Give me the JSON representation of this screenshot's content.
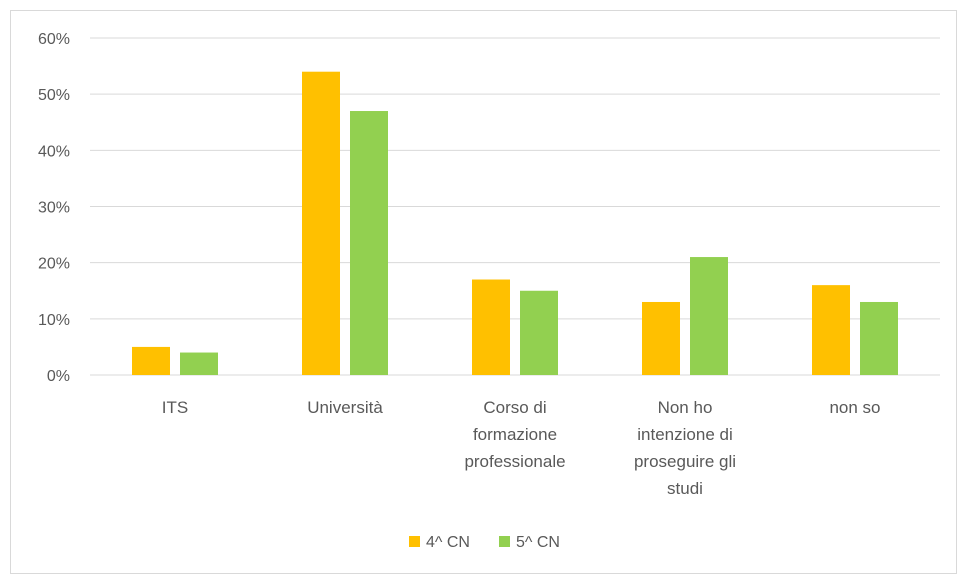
{
  "chart_data": {
    "type": "bar",
    "categories": [
      [
        "ITS"
      ],
      [
        "Università"
      ],
      [
        "Corso di",
        "formazione",
        "professionale"
      ],
      [
        "Non ho",
        "intenzione di",
        "proseguire gli",
        "studi"
      ],
      [
        "non so"
      ]
    ],
    "series": [
      {
        "name": "4^ CN",
        "color": "#FFC000",
        "values": [
          5,
          54,
          17,
          13,
          16
        ]
      },
      {
        "name": "5^ CN",
        "color": "#92D050",
        "values": [
          4,
          47,
          15,
          21,
          13
        ]
      }
    ],
    "y_ticks": [
      "0%",
      "10%",
      "20%",
      "30%",
      "40%",
      "50%",
      "60%"
    ],
    "ylim": [
      0,
      60
    ],
    "grid": true,
    "legend_position": "bottom",
    "gridline_color": "#d9d9d9"
  }
}
